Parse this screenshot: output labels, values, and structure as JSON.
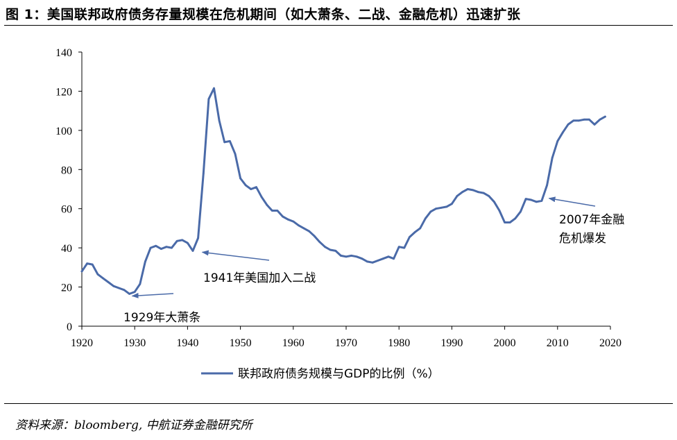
{
  "figure": {
    "title": "图 1：美国联邦政府债务存量规模在危机期间（如大萧条、二战、金融危机）迅速扩张",
    "source": "资料来源：bloomberg, 中航证券金融研究所"
  },
  "colors": {
    "series": "#4a6aa8",
    "axis": "#000000",
    "text": "#000000"
  },
  "chart_data": {
    "type": "line",
    "title": "",
    "xlabel": "",
    "ylabel": "",
    "xlim": [
      1920,
      2020
    ],
    "ylim": [
      0,
      140
    ],
    "x_ticks": [
      1920,
      1930,
      1940,
      1950,
      1960,
      1970,
      1980,
      1990,
      2000,
      2010,
      2020
    ],
    "y_ticks": [
      0,
      20,
      40,
      60,
      80,
      100,
      120,
      140
    ],
    "grid": false,
    "legend_position": "bottom",
    "series": [
      {
        "name": "联邦政府债务规模与GDP的比例（%）",
        "color": "#4a6aa8",
        "x": [
          1920,
          1921,
          1922,
          1923,
          1924,
          1925,
          1926,
          1927,
          1928,
          1929,
          1930,
          1931,
          1932,
          1933,
          1934,
          1935,
          1936,
          1937,
          1938,
          1939,
          1940,
          1941,
          1942,
          1943,
          1944,
          1945,
          1946,
          1947,
          1948,
          1949,
          1950,
          1951,
          1952,
          1953,
          1954,
          1955,
          1956,
          1957,
          1958,
          1959,
          1960,
          1961,
          1962,
          1963,
          1964,
          1965,
          1966,
          1967,
          1968,
          1969,
          1970,
          1971,
          1972,
          1973,
          1974,
          1975,
          1976,
          1977,
          1978,
          1979,
          1980,
          1981,
          1982,
          1983,
          1984,
          1985,
          1986,
          1987,
          1988,
          1989,
          1990,
          1991,
          1992,
          1993,
          1994,
          1995,
          1996,
          1997,
          1998,
          1999,
          2000,
          2001,
          2002,
          2003,
          2004,
          2005,
          2006,
          2007,
          2008,
          2009,
          2010,
          2011,
          2012,
          2013,
          2014,
          2015,
          2016,
          2017,
          2018,
          2019
        ],
        "values": [
          28,
          32,
          31.5,
          26.5,
          24.5,
          22.5,
          20.5,
          19.5,
          18.5,
          16.5,
          17.5,
          21.5,
          33,
          40,
          41,
          39.5,
          40.5,
          40,
          43.5,
          44,
          42.5,
          38.5,
          45,
          78,
          116,
          121.5,
          105,
          94,
          94.5,
          88,
          75.5,
          72,
          70,
          71,
          66,
          62,
          59,
          59,
          56,
          54.5,
          53.5,
          51.5,
          50,
          48.5,
          46,
          43,
          40.5,
          39,
          38.5,
          36,
          35.5,
          36,
          35.5,
          34.5,
          33,
          32.5,
          33.5,
          34.5,
          35.5,
          34.5,
          40.5,
          40,
          45.5,
          48,
          50,
          55,
          58.5,
          60,
          60.5,
          61,
          62.5,
          66.5,
          68.5,
          70,
          69.5,
          68.5,
          68,
          66.5,
          63.5,
          59,
          53,
          53,
          55,
          58.5,
          65,
          64.5,
          63.5,
          64,
          72,
          86,
          94.5,
          99,
          103,
          105,
          105,
          105.5,
          105.5,
          103,
          105.5,
          107
        ]
      }
    ],
    "annotations": [
      {
        "text": "1929年大萧条",
        "point_x": 1929,
        "point_y": 16.5
      },
      {
        "text": "1941年美国加入二战",
        "point_x": 1942,
        "point_y": 38.5
      },
      {
        "text_lines": [
          "2007年金融",
          "危机爆发"
        ],
        "point_x": 2007.6,
        "point_y": 66
      }
    ]
  }
}
